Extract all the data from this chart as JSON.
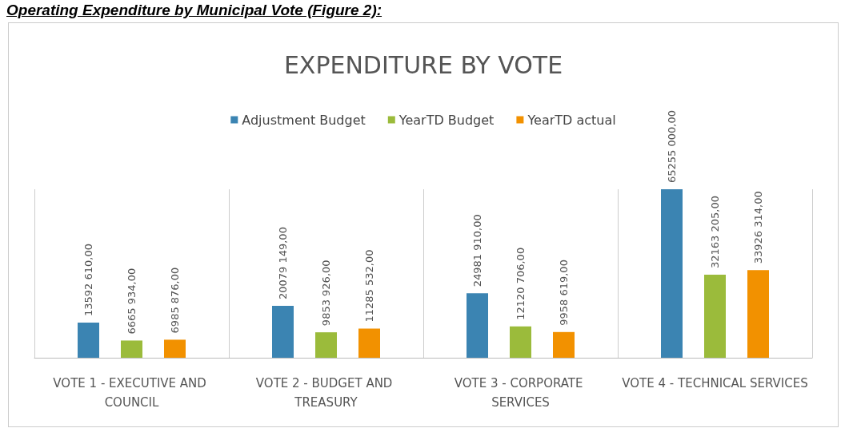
{
  "chart_data": {
    "type": "bar",
    "title": "EXPENDITURE BY VOTE",
    "annotations": [
      "Operating Expenditure by Municipal Vote (Figure 2):"
    ],
    "categories": [
      "VOTE 1 - EXECUTIVE AND COUNCIL",
      "VOTE 2 - BUDGET AND TREASURY",
      "VOTE 3 - CORPORATE SERVICES",
      "VOTE 4 - TECHNICAL SERVICES"
    ],
    "series": [
      {
        "name": "Adjustment Budget",
        "color": "#3b84b2",
        "values": [
          13592610,
          20079149,
          24981910,
          65255000
        ],
        "value_labels": [
          "13592 610,00",
          "20079 149,00",
          "24981 910,00",
          "65255 000,00"
        ]
      },
      {
        "name": "YearTD Budget",
        "color": "#9bbb3b",
        "values": [
          6665934,
          9853926,
          12120706,
          32163205
        ],
        "value_labels": [
          "6665 934,00",
          "9853 926,00",
          "12120 706,00",
          "32163 205,00"
        ]
      },
      {
        "name": "YearTD actual",
        "color": "#f29100",
        "values": [
          6985876,
          11285532,
          9958619,
          33926314
        ],
        "value_labels": [
          "6985 876,00",
          "11285 532,00",
          "9958 619,00",
          "33926 314,00"
        ]
      }
    ],
    "grid": "x",
    "legend": "top"
  }
}
